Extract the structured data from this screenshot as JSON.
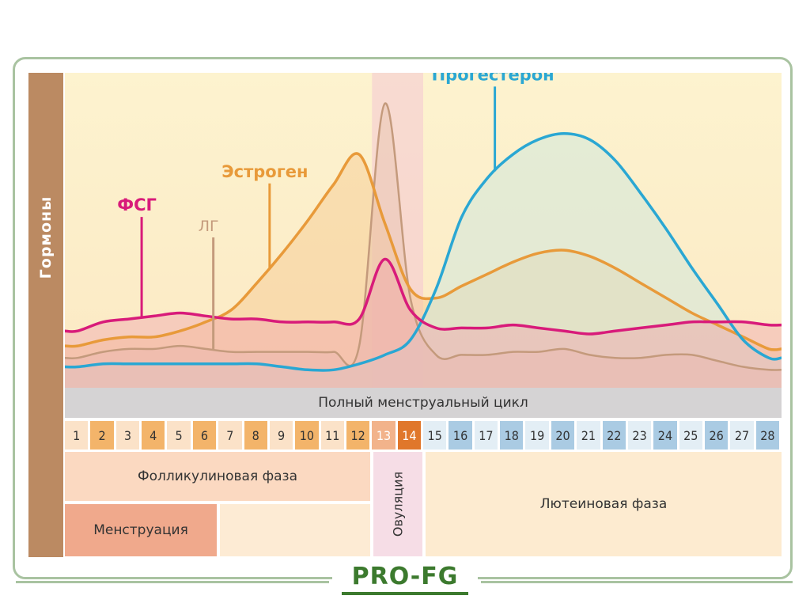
{
  "y_axis_label": "Гормоны",
  "cycle_title": "Полный менструальный цикл",
  "days": [
    "1",
    "2",
    "3",
    "4",
    "5",
    "6",
    "7",
    "8",
    "9",
    "10",
    "11",
    "12",
    "13",
    "14",
    "15",
    "16",
    "17",
    "18",
    "19",
    "20",
    "21",
    "22",
    "23",
    "24",
    "25",
    "26",
    "27",
    "28"
  ],
  "phases": {
    "follicular": "Фолликулиновая фаза",
    "menstruation": "Менструация",
    "ovulation": "Овуляция",
    "luteal": "Лютеиновая фаза"
  },
  "brand": "PRO-FG",
  "colors": {
    "fsh": "#d81b7a",
    "lh": "#c49a7c",
    "estrogen": "#e89a3a",
    "progesterone": "#2aa7d3",
    "day_odd_follicular": "#fbe2c8",
    "day_even_follicular": "#f3b46a",
    "day_13": "#f2b38b",
    "day_14": "#e0772b",
    "day_odd_luteal": "#e3eef5",
    "day_even_luteal": "#aacbe3"
  },
  "chart_data": {
    "type": "line",
    "x": [
      1,
      2,
      3,
      4,
      5,
      6,
      7,
      8,
      9,
      10,
      11,
      12,
      13,
      14,
      15,
      16,
      17,
      18,
      19,
      20,
      21,
      22,
      23,
      24,
      25,
      26,
      27,
      28
    ],
    "xlim": [
      0.5,
      28.5
    ],
    "ylim": [
      0,
      100
    ],
    "ylabel": "Гормоны",
    "xlabel": "Полный менструальный цикл",
    "series": [
      {
        "name": "ФСГ",
        "key": "fsh",
        "values": [
          19,
          22,
          23,
          24,
          25,
          24,
          23,
          23,
          22,
          22,
          22,
          23,
          43,
          26,
          20,
          20,
          20,
          21,
          20,
          19,
          18,
          19,
          20,
          21,
          22,
          22,
          22,
          21
        ]
      },
      {
        "name": "ЛГ",
        "key": "lh",
        "values": [
          10,
          12,
          13,
          13,
          14,
          13,
          12,
          12,
          12,
          12,
          12,
          14,
          95,
          30,
          11,
          11,
          11,
          12,
          12,
          13,
          11,
          10,
          10,
          11,
          11,
          9,
          7,
          6
        ]
      },
      {
        "name": "Эстроген",
        "key": "estrogen",
        "values": [
          14,
          16,
          17,
          17,
          19,
          22,
          26,
          35,
          45,
          56,
          68,
          78,
          55,
          33,
          30,
          34,
          38,
          42,
          45,
          46,
          44,
          40,
          35,
          30,
          25,
          21,
          17,
          13
        ]
      },
      {
        "name": "Прогестерон",
        "key": "progesterone",
        "values": [
          7,
          8,
          8,
          8,
          8,
          8,
          8,
          8,
          7,
          6,
          6,
          8,
          11,
          16,
          33,
          57,
          70,
          78,
          83,
          85,
          83,
          76,
          65,
          53,
          40,
          28,
          16,
          10
        ]
      }
    ],
    "annotations": [
      {
        "text": "ФСГ",
        "series": "ФСГ",
        "at_day": 3.5
      },
      {
        "text": "ЛГ",
        "series": "ЛГ",
        "at_day": 6.3
      },
      {
        "text": "Эстроген",
        "series": "Эстроген",
        "at_day": 8.5
      },
      {
        "text": "Прогестерон",
        "series": "Прогестерон",
        "at_day": 17.3
      }
    ],
    "grid": false,
    "legend": "none"
  }
}
